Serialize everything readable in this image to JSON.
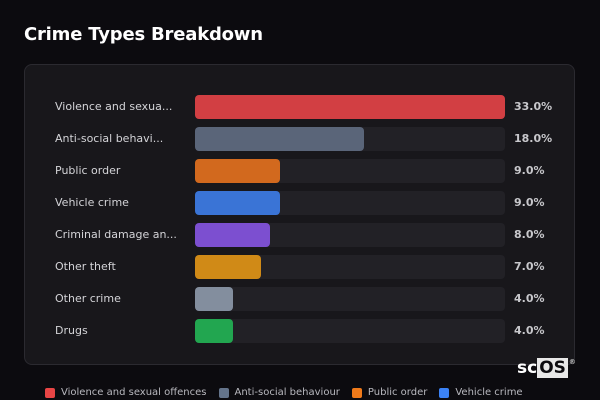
{
  "title": "Crime Types Breakdown",
  "rows": [
    {
      "label": "Violence and sexua...",
      "pct_label": "33.0%",
      "value": 33.0,
      "color": "#d23f43"
    },
    {
      "label": "Anti-social behavi...",
      "pct_label": "18.0%",
      "value": 18.0,
      "color": "#5a6579"
    },
    {
      "label": "Public order",
      "pct_label": "9.0%",
      "value": 9.0,
      "color": "#d2691e"
    },
    {
      "label": "Vehicle crime",
      "pct_label": "9.0%",
      "value": 9.0,
      "color": "#3a74d6"
    },
    {
      "label": "Criminal damage an...",
      "pct_label": "8.0%",
      "value": 8.0,
      "color": "#7c4fd0"
    },
    {
      "label": "Other theft",
      "pct_label": "7.0%",
      "value": 7.0,
      "color": "#d08a17"
    },
    {
      "label": "Other crime",
      "pct_label": "4.0%",
      "value": 4.0,
      "color": "#838e9e"
    },
    {
      "label": "Drugs",
      "pct_label": "4.0%",
      "value": 4.0,
      "color": "#22a650"
    }
  ],
  "legend": [
    {
      "label": "Violence and sexual offences",
      "color": "#e84545"
    },
    {
      "label": "Anti-social behaviour",
      "color": "#64748b"
    },
    {
      "label": "Public order",
      "color": "#f07a1a"
    },
    {
      "label": "Vehicle crime",
      "color": "#3b82f6"
    }
  ],
  "logo": {
    "prefix": "sc",
    "highlight": "OS",
    "mark": "®"
  },
  "chart_data": {
    "type": "bar",
    "orientation": "horizontal",
    "title": "Crime Types Breakdown",
    "categories": [
      "Violence and sexual offences",
      "Anti-social behaviour",
      "Public order",
      "Vehicle crime",
      "Criminal damage and arson",
      "Other theft",
      "Other crime",
      "Drugs"
    ],
    "values": [
      33.0,
      18.0,
      9.0,
      9.0,
      8.0,
      7.0,
      4.0,
      4.0
    ],
    "value_labels": [
      "33.0%",
      "18.0%",
      "9.0%",
      "9.0%",
      "8.0%",
      "7.0%",
      "4.0%",
      "4.0%"
    ],
    "xlabel": "",
    "ylabel": "",
    "xlim": [
      0,
      33
    ],
    "grid": false,
    "legend_position": "bottom"
  }
}
